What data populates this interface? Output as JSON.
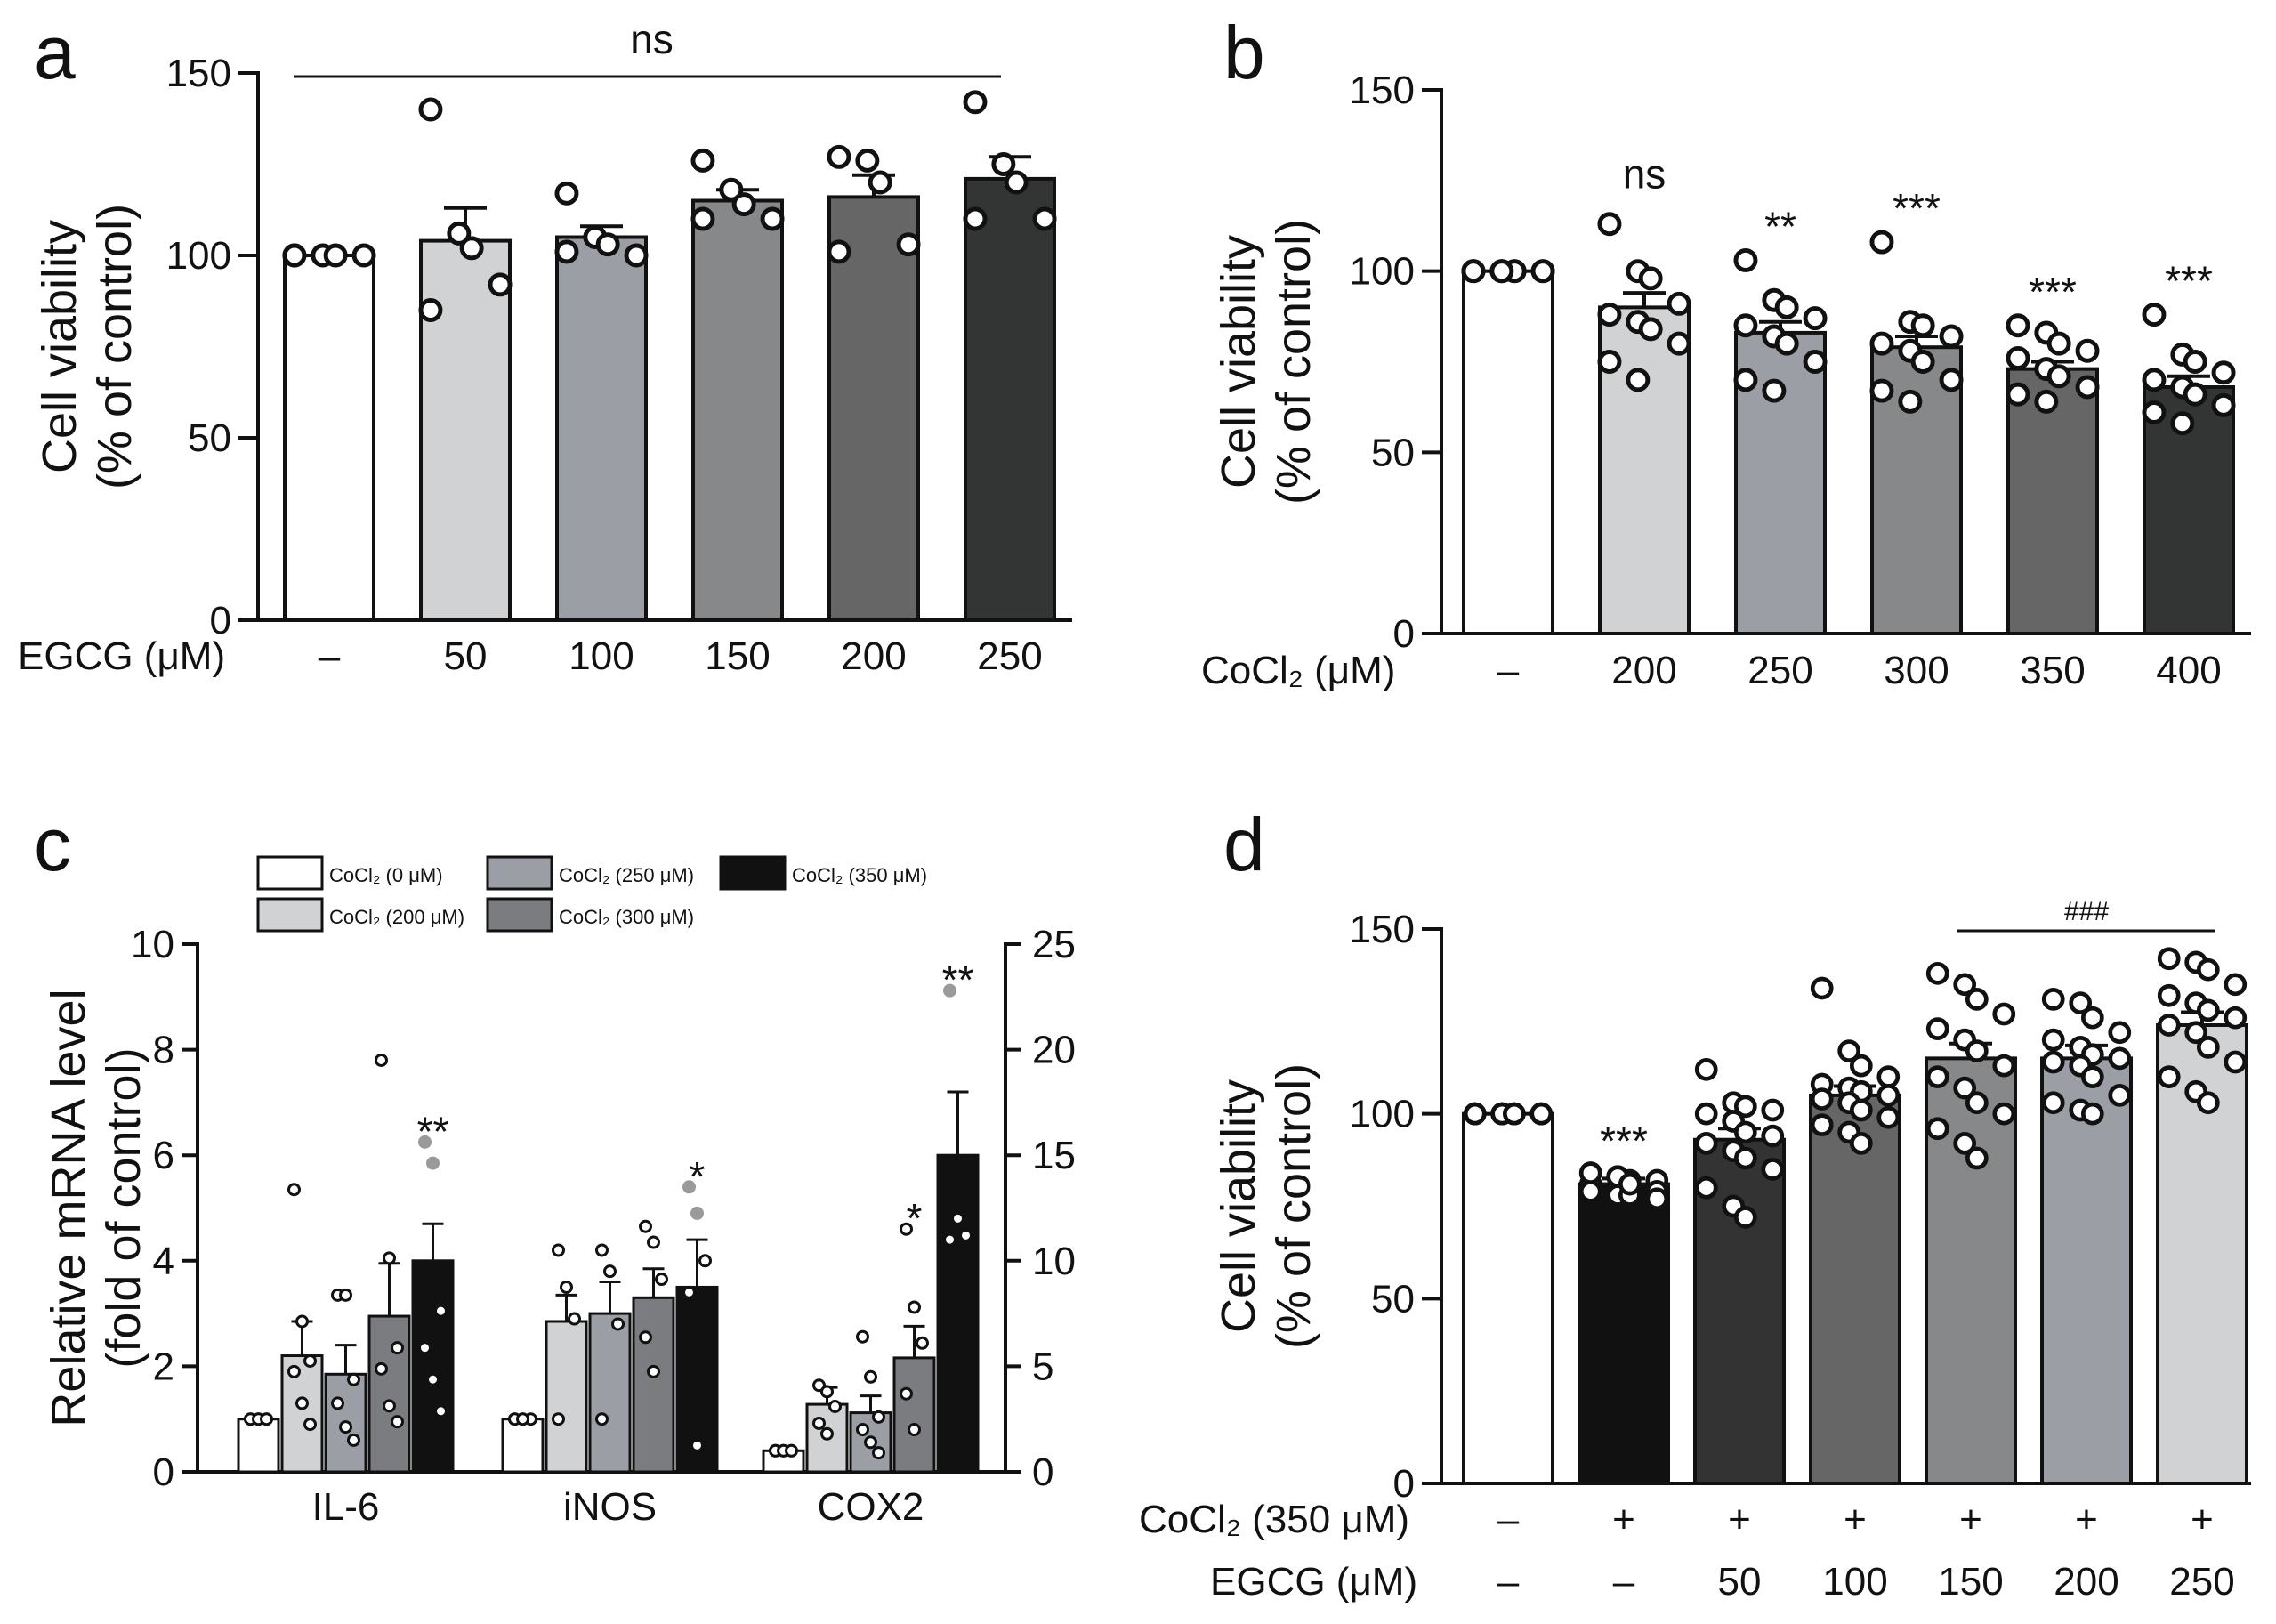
{
  "chart_data": [
    {
      "panel": "a",
      "type": "bar",
      "ylabel": [
        "Cell viability",
        "(% of control)"
      ],
      "ylim": [
        0,
        150
      ],
      "yticks": [
        0,
        50,
        100,
        150
      ],
      "treatment_label": "EGCG (μM)",
      "categories": [
        "–",
        "50",
        "100",
        "150",
        "200",
        "250"
      ],
      "values": [
        100,
        104,
        105,
        115,
        116,
        121
      ],
      "sem": [
        0,
        9,
        3,
        3,
        6,
        6
      ],
      "colors": [
        "#ffffff",
        "#d1d2d4",
        "#9b9ea5",
        "#878889",
        "#666666",
        "#333535"
      ],
      "points": [
        [
          100,
          100,
          100,
          100,
          100
        ],
        [
          140,
          106,
          102,
          92,
          85
        ],
        [
          117,
          105,
          103,
          100,
          101
        ],
        [
          126,
          118,
          114,
          110,
          110
        ],
        [
          127,
          126,
          120,
          103,
          101
        ],
        [
          142,
          125,
          120,
          110,
          110
        ]
      ],
      "significance": [],
      "bracket": {
        "from": 0,
        "to": 5,
        "label": "ns"
      }
    },
    {
      "panel": "b",
      "type": "bar",
      "ylabel": [
        "Cell viability",
        "(% of control)"
      ],
      "ylim": [
        0,
        150
      ],
      "yticks": [
        0,
        50,
        100,
        150
      ],
      "treatment_label": "CoCl₂ (μM)",
      "categories": [
        "–",
        "200",
        "250",
        "300",
        "350",
        "400"
      ],
      "values": [
        100,
        90,
        83,
        79,
        73,
        68
      ],
      "sem": [
        0,
        4,
        3,
        3,
        2,
        3
      ],
      "colors": [
        "#ffffff",
        "#d1d2d4",
        "#9b9ea5",
        "#878889",
        "#666666",
        "#333535"
      ],
      "points": [
        [
          100,
          100,
          100,
          100,
          100,
          100,
          100,
          100,
          100,
          100
        ],
        [
          113,
          100,
          98,
          91,
          88,
          86,
          84,
          80,
          75,
          70
        ],
        [
          103,
          92,
          90,
          87,
          85,
          82,
          80,
          75,
          70,
          67
        ],
        [
          108,
          86,
          85,
          82,
          80,
          78,
          75,
          70,
          67,
          64
        ],
        [
          85,
          83,
          80,
          78,
          76,
          73,
          71,
          68,
          66,
          64
        ],
        [
          88,
          77,
          75,
          72,
          70,
          68,
          66,
          63,
          61,
          58
        ]
      ],
      "significance": [
        "",
        "ns",
        "**",
        "***",
        "***",
        "***"
      ],
      "bracket": null
    },
    {
      "panel": "c",
      "type": "bar",
      "ylabel": [
        "Relative mRNA level",
        "(fold of control)"
      ],
      "ylim_left": [
        0,
        10
      ],
      "yticks_left": [
        0,
        2,
        4,
        6,
        8,
        10
      ],
      "ylim_right": [
        0,
        25
      ],
      "yticks_right": [
        0,
        5,
        10,
        15,
        20,
        25
      ],
      "categories": [
        "IL-6",
        "iNOS",
        "COX2"
      ],
      "series": [
        {
          "name": "CoCl₂ (0 μM)",
          "color": "#ffffff",
          "values": [
            1,
            1,
            1
          ],
          "sem": [
            0,
            0,
            0
          ]
        },
        {
          "name": "CoCl₂ (200 μM)",
          "color": "#d1d2d4",
          "values": [
            2.2,
            2.85,
            3.2
          ],
          "sem": [
            0.65,
            0.5,
            0.8
          ]
        },
        {
          "name": "CoCl₂ (250 μM)",
          "color": "#9b9ea5",
          "values": [
            1.85,
            3.0,
            2.8
          ],
          "sem": [
            0.55,
            0.6,
            0.8
          ]
        },
        {
          "name": "CoCl₂ (300 μM)",
          "color": "#7b7c80",
          "values": [
            2.95,
            3.3,
            5.4
          ],
          "sem": [
            1.0,
            0.55,
            1.5
          ]
        },
        {
          "name": "CoCl₂ (350 μM)",
          "color": "#111111",
          "values": [
            4.0,
            3.5,
            15.0
          ],
          "sem": [
            0.7,
            0.9,
            3.0
          ]
        }
      ],
      "axis_for_category": [
        "left",
        "left",
        "right"
      ],
      "points": [
        [
          [
            1,
            1,
            1,
            1,
            1,
            1
          ],
          [
            5.35,
            2.85,
            2.1,
            1.9,
            1.3,
            0.9
          ],
          [
            3.35,
            3.35,
            1.75,
            1.3,
            0.85,
            0.6
          ],
          [
            7.8,
            4.05,
            2.35,
            1.95,
            1.25,
            0.95
          ],
          [
            6.25,
            5.85,
            3.05,
            2.35,
            1.75,
            1.15
          ]
        ],
        [
          [
            1,
            1,
            1,
            1,
            1
          ],
          [
            4.2,
            3.5,
            2.9,
            1.0
          ],
          [
            4.2,
            3.8,
            2.8,
            1.0
          ],
          [
            4.65,
            4.35,
            3.65,
            2.55,
            1.9
          ],
          [
            5.4,
            4.9,
            4.0,
            3.4,
            0.5
          ]
        ],
        [
          [
            1,
            1,
            1,
            1,
            1,
            1
          ],
          [
            4.1,
            3.8,
            3.1,
            2.3,
            1.8
          ],
          [
            6.4,
            4.5,
            2.6,
            2.0,
            1.4,
            0.9
          ],
          [
            11.5,
            7.8,
            6.1,
            3.7,
            2.0
          ],
          [
            22.8,
            12.0,
            11.2,
            11.0
          ]
        ]
      ],
      "outlier_points": [
        [
          [],
          [],
          [],
          [],
          [
            6.25,
            5.85
          ]
        ],
        [
          [],
          [],
          [],
          [],
          [
            5.4,
            4.9
          ]
        ],
        [
          [],
          [],
          [],
          [],
          [
            22.8
          ]
        ]
      ],
      "significance": [
        [
          "",
          "",
          "",
          "",
          "**"
        ],
        [
          "",
          "",
          "",
          "",
          "*"
        ],
        [
          "",
          "",
          "",
          "*",
          "**"
        ]
      ]
    },
    {
      "panel": "d",
      "type": "bar",
      "ylabel": [
        "Cell viability",
        "(% of control)"
      ],
      "ylim": [
        0,
        150
      ],
      "yticks": [
        0,
        50,
        100,
        150
      ],
      "row1_label": "CoCl₂ (350 μM)",
      "row1": [
        "–",
        "+",
        "+",
        "+",
        "+",
        "+",
        "+"
      ],
      "row2_label": "EGCG (μM)",
      "row2": [
        "–",
        "–",
        "50",
        "100",
        "150",
        "200",
        "250"
      ],
      "values": [
        100,
        81,
        93,
        105,
        115,
        115,
        124
      ],
      "sem": [
        0,
        1.5,
        3,
        2.5,
        4,
        3.5,
        3.5
      ],
      "colors": [
        "#ffffff",
        "#111111",
        "#333333",
        "#666666",
        "#878889",
        "#9b9ea5",
        "#d1d2d4"
      ],
      "points": [
        [
          100,
          100,
          100,
          100,
          100,
          100,
          100,
          100,
          100,
          100,
          100,
          100,
          100,
          100,
          100
        ],
        [
          84,
          83,
          82,
          82,
          81,
          80,
          80,
          79,
          79,
          78,
          78,
          77,
          84,
          83,
          81
        ],
        [
          112,
          103,
          102,
          101,
          100,
          98,
          95,
          94,
          92,
          90,
          88,
          85,
          80,
          75,
          72
        ],
        [
          134,
          117,
          113,
          110,
          108,
          107,
          106,
          105,
          104,
          103,
          101,
          99,
          97,
          95,
          92
        ],
        [
          138,
          135,
          131,
          127,
          123,
          120,
          117,
          113,
          110,
          107,
          103,
          100,
          96,
          92,
          88
        ],
        [
          131,
          130,
          126,
          122,
          120,
          118,
          116,
          115,
          114,
          113,
          110,
          105,
          103,
          101,
          100
        ],
        [
          142,
          141,
          139,
          135,
          132,
          130,
          128,
          126,
          124,
          122,
          118,
          114,
          110,
          106,
          103
        ]
      ],
      "significance": [
        "",
        "***",
        "",
        "",
        "",
        "",
        ""
      ],
      "bracket": {
        "from": 4,
        "to": 6,
        "label": "###"
      }
    }
  ],
  "panel_letters": [
    "a",
    "b",
    "c",
    "d"
  ]
}
